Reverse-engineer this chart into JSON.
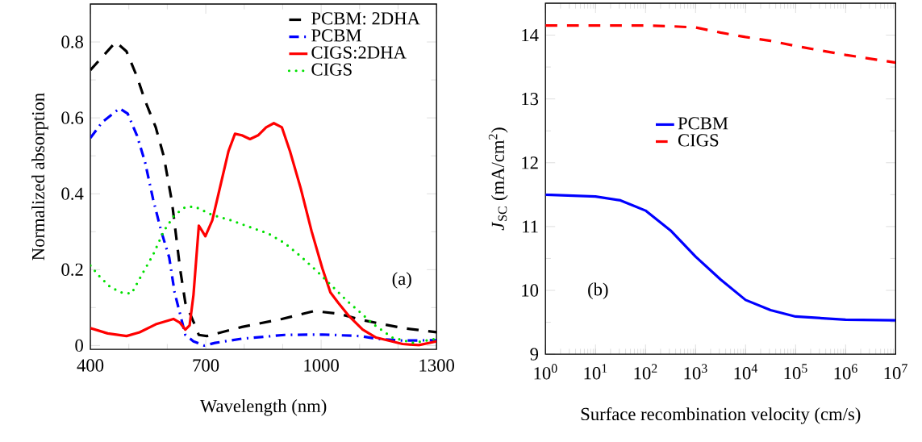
{
  "chart_data": [
    {
      "type": "line",
      "xlabel": "Wavelength (nm)",
      "ylabel": "Normalized absorption",
      "annotations": [
        "(a)"
      ],
      "legend": "top right",
      "xlim": [
        400,
        1300
      ],
      "xticks": [
        400,
        700,
        1000,
        1300
      ],
      "ylim": [
        -0.01,
        0.9
      ],
      "yticks": [
        0,
        0.2,
        0.4,
        0.6,
        0.8
      ],
      "series": [
        {
          "name": "PCBM: 2DHA",
          "color": "#000000",
          "line_style": "dashed",
          "x": [
            400,
            466,
            494,
            521,
            542,
            570,
            591,
            612,
            623,
            633,
            647,
            668,
            682,
            703,
            794,
            898,
            982,
            1045,
            1108,
            1212,
            1300
          ],
          "values": [
            0.726,
            0.8,
            0.775,
            0.709,
            0.646,
            0.575,
            0.498,
            0.379,
            0.288,
            0.204,
            0.112,
            0.063,
            0.028,
            0.025,
            0.049,
            0.07,
            0.091,
            0.084,
            0.067,
            0.046,
            0.035
          ]
        },
        {
          "name": "PCBM",
          "color": "#0000ff",
          "line_style": "dashdot",
          "x": [
            400,
            431,
            476,
            497,
            521,
            542,
            563,
            584,
            605,
            619,
            633,
            647,
            668,
            696,
            724,
            794,
            905,
            1003,
            1101,
            1143,
            1212,
            1300
          ],
          "values": [
            0.547,
            0.589,
            0.625,
            0.611,
            0.554,
            0.484,
            0.386,
            0.302,
            0.232,
            0.14,
            0.084,
            0.028,
            0.011,
            0,
            0.007,
            0.018,
            0.028,
            0.029,
            0.025,
            0.018,
            0.013,
            0.014
          ]
        },
        {
          "name": "CIGS:2DHA",
          "color": "#ff0000",
          "line_style": "solid",
          "x": [
            400,
            445,
            494,
            528,
            570,
            616,
            633,
            647,
            658,
            668,
            682,
            699,
            717,
            738,
            759,
            776,
            794,
            815,
            836,
            857,
            877,
            898,
            919,
            947,
            975,
            1003,
            1024,
            1045,
            1073,
            1108,
            1143,
            1212,
            1254,
            1300
          ],
          "values": [
            0.046,
            0.032,
            0.025,
            0.035,
            0.056,
            0.07,
            0.06,
            0.042,
            0.053,
            0.133,
            0.316,
            0.288,
            0.33,
            0.421,
            0.512,
            0.558,
            0.554,
            0.544,
            0.554,
            0.575,
            0.586,
            0.575,
            0.512,
            0.414,
            0.302,
            0.204,
            0.14,
            0.112,
            0.077,
            0.042,
            0.021,
            0.004,
            0.001,
            0.011
          ]
        },
        {
          "name": "CIGS",
          "color": "#00e000",
          "line_style": "dotted",
          "x": [
            400,
            424,
            452,
            480,
            507,
            535,
            563,
            591,
            619,
            647,
            672,
            717,
            766,
            815,
            863,
            905,
            947,
            989,
            1031,
            1066,
            1101,
            1136,
            1185,
            1240,
            1300
          ],
          "values": [
            0.211,
            0.182,
            0.154,
            0.14,
            0.137,
            0.189,
            0.239,
            0.302,
            0.344,
            0.365,
            0.366,
            0.344,
            0.33,
            0.312,
            0.295,
            0.27,
            0.235,
            0.196,
            0.154,
            0.119,
            0.088,
            0.056,
            0.021,
            0.007,
            0.018
          ]
        }
      ]
    },
    {
      "type": "line",
      "xlabel": "Surface recombination velocity (cm/s)",
      "ylabel": "*J*$_{SC}$ (mA/cm$^{2}$)",
      "annotations": [
        "(b)"
      ],
      "legend": "center",
      "log": "x",
      "xlim": [
        1,
        10000000
      ],
      "xticks": [
        {
          "value": 1,
          "label": "10$^{0}$"
        },
        {
          "value": 10,
          "label": "10$^{1}$"
        },
        {
          "value": 100,
          "label": "10$^{2}$"
        },
        {
          "value": 1000,
          "label": "10$^{3}$"
        },
        {
          "value": 10000,
          "label": "10$^{4}$"
        },
        {
          "value": 100000,
          "label": "10$^{5}$"
        },
        {
          "value": 1000000,
          "label": "10$^{6}$"
        },
        {
          "value": 10000000,
          "label": "10$^{7}$"
        }
      ],
      "ylim": [
        9,
        14.5
      ],
      "yticks": [
        9,
        10,
        11,
        12,
        13,
        14
      ],
      "series": [
        {
          "name": "PCBM",
          "color": "#0000ff",
          "line_style": "solid",
          "x": [
            1,
            10,
            31.6,
            100,
            316,
            1000,
            3162,
            10000,
            31623,
            100000,
            1000000,
            10000000
          ],
          "values": [
            11.5,
            11.47,
            11.41,
            11.25,
            10.94,
            10.53,
            10.17,
            9.85,
            9.69,
            9.59,
            9.54,
            9.53
          ]
        },
        {
          "name": "CIGS",
          "color": "#ff0000",
          "line_style": "dashed",
          "x": [
            1,
            10,
            100,
            316,
            1000,
            3162,
            10000,
            31623,
            100000,
            316228,
            1000000,
            3162278,
            10000000
          ],
          "values": [
            14.15,
            14.15,
            14.15,
            14.14,
            14.12,
            14.04,
            13.97,
            13.91,
            13.83,
            13.76,
            13.69,
            13.63,
            13.57
          ]
        }
      ]
    }
  ]
}
